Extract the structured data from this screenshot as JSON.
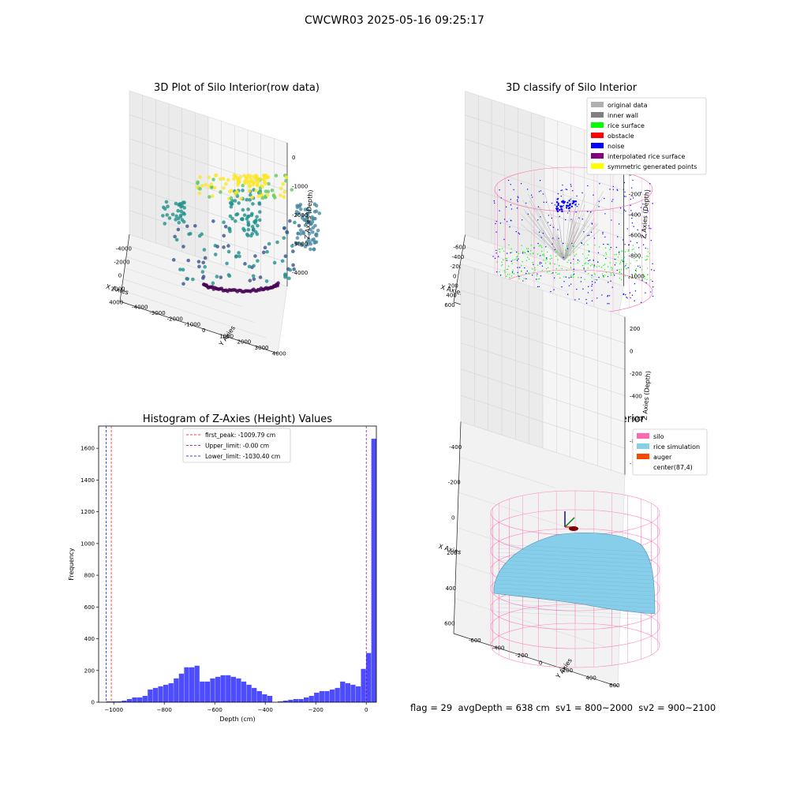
{
  "suptitle": "CWCWR03 2025-05-16 09:25:17",
  "footer": "flag = 29  avgDepth = 638 cm  sv1 = 800~2000  sv2 = 900~2100",
  "colors": {
    "viridis": [
      "#440154",
      "#3b528b",
      "#21918c",
      "#5ec962",
      "#fde725"
    ],
    "original": "#b0b0b0",
    "inner_wall": "#808080",
    "rice_surface": "#00ff00",
    "obstacle": "#ff0000",
    "noise": "#0000ff",
    "interp": "#800080",
    "symmetric": "#ffff00",
    "silo": "#ff69b4",
    "rice_sim": "#87ceeb",
    "auger": "#ff4500",
    "hist": "#4d4dff"
  },
  "chart_data": [
    {
      "type": "scatter",
      "title": "3D Plot of Silo Interior(row data)",
      "xlabel": "X Axies",
      "ylabel": "Y Axies",
      "zlabel": "Z Axies (Depth)",
      "x_ticks": [
        "-4000",
        "-2000",
        "0",
        "2000",
        "4000"
      ],
      "y_ticks": [
        "-4000",
        "-3000",
        "-2000",
        "-1000",
        "0",
        "1000",
        "2000",
        "3000",
        "4000"
      ],
      "z_ticks": [
        "0",
        "-1000",
        "-2000",
        "-3000",
        "-4000"
      ],
      "xlim": [
        -4500,
        4500
      ],
      "ylim": [
        -4500,
        4500
      ],
      "zlim": [
        -4800,
        300
      ]
    },
    {
      "type": "scatter",
      "title": "3D classify of Silo Interior",
      "xlabel": "X Axies",
      "ylabel": "Y Axies",
      "zlabel": "Z Axies (Depth)",
      "x_ticks": [
        "-600",
        "-400",
        "-200",
        "0",
        "200",
        "400",
        "600"
      ],
      "y_ticks": [
        "-600",
        "-400",
        "-200",
        "0",
        "200",
        "400",
        "600"
      ],
      "z_ticks": [
        "200",
        "0",
        "-200",
        "-400",
        "-600",
        "-800",
        "-1000"
      ],
      "legend": [
        "original data",
        "inner wall",
        "rice surface",
        "obstacle",
        "noise",
        "interpolated rice surface",
        "symmetric generated points"
      ],
      "legend_placement": "top-right"
    },
    {
      "type": "bar",
      "title": "Histogram of Z-Axies (Height) Values",
      "xlabel": "Depth (cm)",
      "ylabel": "Frequency",
      "xlim": [
        -1060,
        40
      ],
      "ylim": [
        0,
        1740
      ],
      "x_ticks": [
        -1000,
        -800,
        -600,
        -400,
        -200,
        0
      ],
      "y_ticks": [
        0,
        200,
        400,
        600,
        800,
        1000,
        1200,
        1400,
        1600
      ],
      "bin_width": 20.6,
      "bins_start": -1030.4,
      "values": [
        5,
        5,
        5,
        10,
        20,
        30,
        30,
        40,
        80,
        90,
        100,
        110,
        120,
        150,
        180,
        220,
        220,
        230,
        130,
        130,
        150,
        160,
        170,
        170,
        160,
        150,
        130,
        110,
        90,
        70,
        50,
        40,
        0,
        5,
        10,
        15,
        20,
        20,
        30,
        40,
        60,
        70,
        70,
        80,
        90,
        130,
        120,
        110,
        100,
        210,
        310,
        1660
      ],
      "lines": [
        {
          "label": "first_peak: -1009.79 cm",
          "x": -1009.79,
          "color": "#ff0000"
        },
        {
          "label": "Upper_limit: -0.00 cm",
          "x": -0.0,
          "color": "#800080"
        },
        {
          "label": "Lower_limit: -1030.40 cm",
          "x": -1030.4,
          "color": "#0000ff"
        }
      ],
      "legend_placement": "top-center"
    },
    {
      "type": "area",
      "title": "3D simulation of Silo Interior",
      "xlabel": "X Axies",
      "ylabel": "Y Axies",
      "zlabel": "Z Axies (Depth)",
      "x_ticks": [
        "-400",
        "-200",
        "0",
        "200",
        "400",
        "600"
      ],
      "y_ticks": [
        "-600",
        "-400",
        "-200",
        "0",
        "200",
        "400",
        "600"
      ],
      "z_ticks": [
        "200",
        "0",
        "-200",
        "-400",
        "-600",
        "-800",
        "-1000"
      ],
      "legend": [
        "silo",
        "rice simulation",
        "auger",
        "center(87,4)"
      ],
      "legend_placement": "top-right"
    }
  ]
}
